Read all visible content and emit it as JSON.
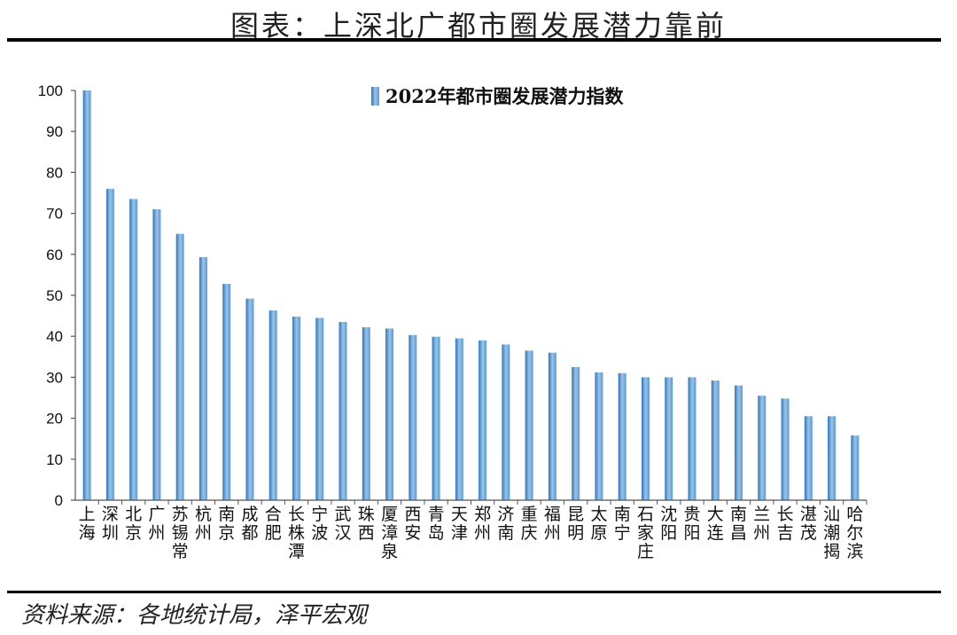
{
  "header": {
    "title": "图表：上深北广都市圈发展潜力靠前"
  },
  "footer": {
    "source": "资料来源：各地统计局，泽平宏观"
  },
  "colors": {
    "bar": "#5b9bd5",
    "bar_light": "#9cc3e6",
    "bar_dark": "#2e75b6",
    "axis": "#555555"
  },
  "chart_data": {
    "type": "bar",
    "title": "",
    "xlabel": "",
    "ylabel": "",
    "ylim": [
      0,
      100
    ],
    "yticks": [
      0,
      10,
      20,
      30,
      40,
      50,
      60,
      70,
      80,
      90,
      100
    ],
    "legend": {
      "label": "2022年都市圈发展潜力指数",
      "position": "top-center"
    },
    "categories": [
      "上海",
      "深圳",
      "北京",
      "广州",
      "苏锡常",
      "杭州",
      "南京",
      "成都",
      "合肥",
      "长株潭",
      "宁波",
      "武汉",
      "珠西",
      "厦漳泉",
      "西安",
      "青岛",
      "天津",
      "郑州",
      "济南",
      "重庆",
      "福州",
      "昆明",
      "太原",
      "南宁",
      "石家庄",
      "沈阳",
      "贵阳",
      "大连",
      "南昌",
      "兰州",
      "长吉",
      "湛茂",
      "汕潮揭",
      "哈尔滨"
    ],
    "series": [
      {
        "name": "2022年都市圈发展潜力指数",
        "values": [
          100,
          76,
          73.5,
          71,
          65,
          59.3,
          52.8,
          49.2,
          46.3,
          44.8,
          44.5,
          43.5,
          42.2,
          41.9,
          40.3,
          39.9,
          39.5,
          39,
          38,
          36.5,
          36,
          32.5,
          31.2,
          31,
          30,
          30,
          30,
          29.2,
          28,
          25.5,
          24.8,
          20.5,
          20.5,
          15.8
        ]
      }
    ]
  }
}
